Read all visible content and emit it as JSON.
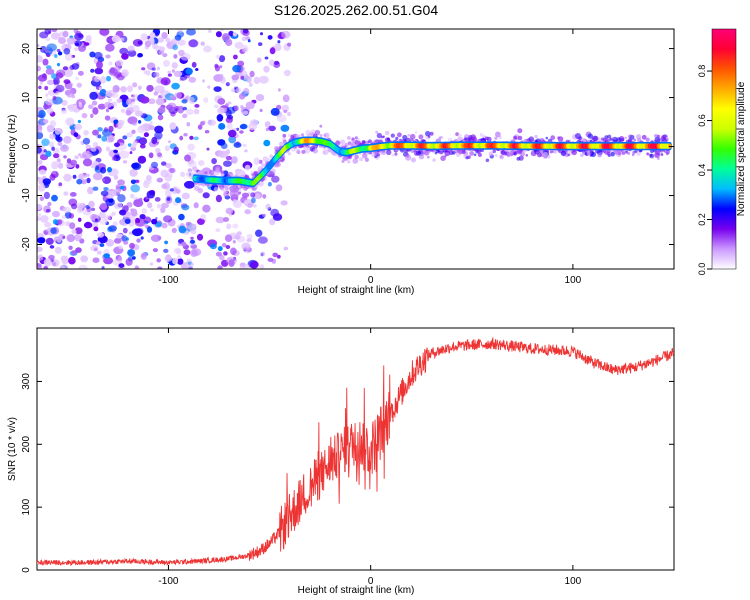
{
  "title": "S126.2025.262.00.51.G04",
  "chart_data": [
    {
      "type": "heatmap",
      "xlabel": "Height of straight line (km)",
      "ylabel": "Frequency (Hz)",
      "xlim": [
        -165,
        150
      ],
      "ylim": [
        -25,
        24
      ],
      "xticks": [
        -100,
        0,
        100
      ],
      "yticks": [
        20,
        10,
        0,
        -10,
        -20
      ],
      "colorbar": {
        "label": "Normalized spectral amplitude",
        "range": [
          0,
          0.97
        ],
        "ticks": [
          0.0,
          0.2,
          0.4,
          0.6,
          0.8
        ],
        "colormap": [
          "#ffffff",
          "#cc99ff",
          "#7700ee",
          "#0000ff",
          "#00bbff",
          "#00ff99",
          "#33ff00",
          "#ccff00",
          "#ffff00",
          "#ffaa00",
          "#ff5500",
          "#ff0033",
          "#ff0077"
        ]
      },
      "noise_region_x": [
        -165,
        -60
      ],
      "signal_trace": {
        "x": [
          -87,
          -80,
          -72,
          -65,
          -58,
          -52,
          -46,
          -42,
          -38,
          -33,
          -28,
          -24,
          -20,
          -17,
          -15,
          -12,
          -8,
          -4,
          0,
          5,
          10,
          20,
          30,
          45,
          60,
          80,
          100,
          120,
          140,
          148
        ],
        "freq": [
          -6.5,
          -6.8,
          -7.0,
          -7.0,
          -7.5,
          -5.0,
          -2.0,
          -0.2,
          0.8,
          1.2,
          1.2,
          1.0,
          0.5,
          -0.5,
          -1.0,
          -1.2,
          -0.8,
          -0.4,
          -0.3,
          0.0,
          0.2,
          0.2,
          0.1,
          0.2,
          0.2,
          0.1,
          0.1,
          0.1,
          0.1,
          0.1
        ],
        "amplitude": [
          0.4,
          0.45,
          0.45,
          0.5,
          0.7,
          0.4,
          0.55,
          0.6,
          0.5,
          0.75,
          0.8,
          0.7,
          0.45,
          0.45,
          0.5,
          0.55,
          0.6,
          0.65,
          0.75,
          0.8,
          0.85,
          0.9,
          0.88,
          0.9,
          0.9,
          0.92,
          0.92,
          0.95,
          0.95,
          0.95
        ]
      }
    },
    {
      "type": "line",
      "xlabel": "Height of straight line (km)",
      "ylabel": "SNR (10 * v/v)",
      "xlim": [
        -165,
        150
      ],
      "ylim": [
        0,
        385
      ],
      "xticks": [
        -100,
        0,
        100
      ],
      "yticks": [
        0,
        100,
        200,
        300
      ],
      "color": "#ee3333",
      "series": [
        {
          "name": "SNR",
          "x": [
            -165,
            -140,
            -120,
            -100,
            -85,
            -70,
            -62,
            -55,
            -50,
            -45,
            -40,
            -35,
            -30,
            -25,
            -20,
            -15,
            -10,
            -5,
            0,
            5,
            10,
            15,
            20,
            25,
            30,
            40,
            50,
            60,
            80,
            100,
            110,
            120,
            130,
            140,
            150
          ],
          "values": [
            12,
            12,
            14,
            12,
            14,
            18,
            22,
            30,
            42,
            60,
            85,
            110,
            130,
            150,
            170,
            185,
            200,
            205,
            190,
            220,
            250,
            280,
            310,
            330,
            345,
            355,
            358,
            360,
            352,
            348,
            330,
            318,
            322,
            332,
            345
          ]
        }
      ]
    }
  ]
}
